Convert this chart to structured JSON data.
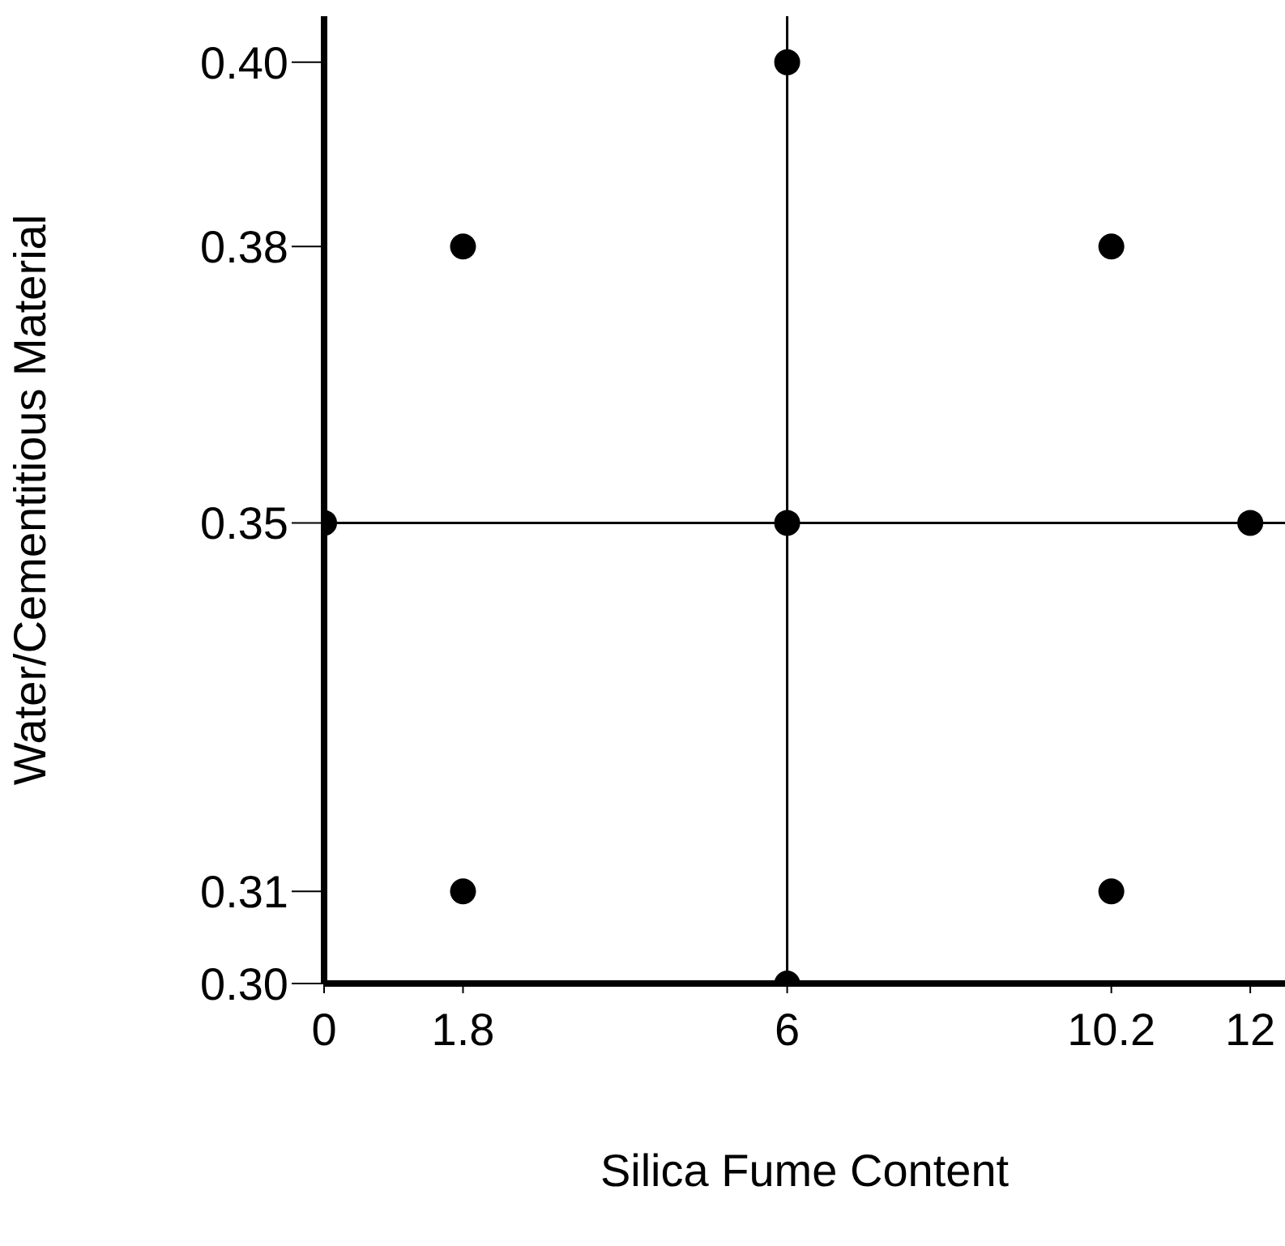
{
  "chart_data": {
    "type": "scatter",
    "xlabel": "Silica Fume Content",
    "ylabel": "Water/Cementitious Material",
    "x": [
      1.8,
      6,
      10.2,
      0,
      6,
      12,
      1.8,
      10.2,
      6
    ],
    "values": [
      0.38,
      0.4,
      0.38,
      0.35,
      0.35,
      0.35,
      0.31,
      0.31,
      0.3
    ],
    "color": "#000000",
    "marker": "circle",
    "xlim": [
      0,
      12.45
    ],
    "xticks": [
      0,
      1.8,
      6,
      10.2,
      12
    ],
    "ylim": [
      0.3,
      0.405
    ],
    "yticks": [
      {
        "value": 0.3,
        "label": "0.30"
      },
      0.31,
      0.35,
      0.38,
      {
        "value": 0.4,
        "label": "0.40"
      }
    ],
    "ref_lines": [
      {
        "axis": "x",
        "value": 6,
        "color": "#000000"
      },
      {
        "axis": "y",
        "value": 0.35,
        "color": "#000000"
      }
    ],
    "grid": false
  }
}
